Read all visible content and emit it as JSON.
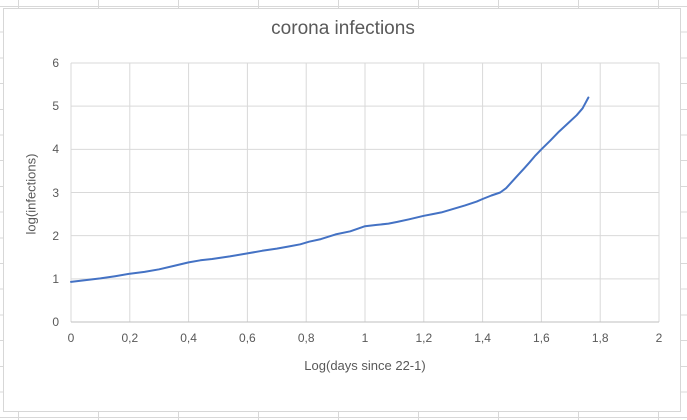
{
  "chart_data": {
    "type": "line",
    "title": "corona infections",
    "xlabel": "Log(days since 22-1)",
    "ylabel": "log(infections)",
    "xlim": [
      0,
      2
    ],
    "ylim": [
      0,
      6
    ],
    "grid": true,
    "legend": "none",
    "x_ticks": [
      {
        "label": "0",
        "value": 0.0
      },
      {
        "label": "0,2",
        "value": 0.2
      },
      {
        "label": "0,4",
        "value": 0.4
      },
      {
        "label": "0,6",
        "value": 0.6
      },
      {
        "label": "0,8",
        "value": 0.8
      },
      {
        "label": "1",
        "value": 1.0
      },
      {
        "label": "1,2",
        "value": 1.2
      },
      {
        "label": "1,4",
        "value": 1.4
      },
      {
        "label": "1,6",
        "value": 1.6
      },
      {
        "label": "1,8",
        "value": 1.8
      },
      {
        "label": "2",
        "value": 2.0
      }
    ],
    "y_ticks": [
      {
        "label": "0",
        "value": 0
      },
      {
        "label": "1",
        "value": 1
      },
      {
        "label": "2",
        "value": 2
      },
      {
        "label": "3",
        "value": 3
      },
      {
        "label": "4",
        "value": 4
      },
      {
        "label": "5",
        "value": 5
      },
      {
        "label": "6",
        "value": 6
      }
    ],
    "series": [
      {
        "name": "log(infections)",
        "color": "#4472C4",
        "points": [
          [
            0.0,
            0.93
          ],
          [
            0.05,
            0.97
          ],
          [
            0.1,
            1.01
          ],
          [
            0.15,
            1.06
          ],
          [
            0.2,
            1.12
          ],
          [
            0.25,
            1.16
          ],
          [
            0.3,
            1.22
          ],
          [
            0.35,
            1.3
          ],
          [
            0.4,
            1.38
          ],
          [
            0.44,
            1.43
          ],
          [
            0.48,
            1.46
          ],
          [
            0.54,
            1.52
          ],
          [
            0.6,
            1.59
          ],
          [
            0.65,
            1.65
          ],
          [
            0.7,
            1.7
          ],
          [
            0.74,
            1.75
          ],
          [
            0.78,
            1.8
          ],
          [
            0.81,
            1.86
          ],
          [
            0.85,
            1.92
          ],
          [
            0.9,
            2.03
          ],
          [
            0.95,
            2.1
          ],
          [
            1.0,
            2.22
          ],
          [
            1.04,
            2.25
          ],
          [
            1.08,
            2.28
          ],
          [
            1.11,
            2.32
          ],
          [
            1.15,
            2.38
          ],
          [
            1.2,
            2.46
          ],
          [
            1.23,
            2.5
          ],
          [
            1.26,
            2.54
          ],
          [
            1.3,
            2.62
          ],
          [
            1.34,
            2.7
          ],
          [
            1.38,
            2.79
          ],
          [
            1.4,
            2.85
          ],
          [
            1.43,
            2.93
          ],
          [
            1.46,
            3.0
          ],
          [
            1.48,
            3.1
          ],
          [
            1.5,
            3.25
          ],
          [
            1.52,
            3.4
          ],
          [
            1.54,
            3.55
          ],
          [
            1.56,
            3.7
          ],
          [
            1.58,
            3.86
          ],
          [
            1.6,
            4.0
          ],
          [
            1.63,
            4.2
          ],
          [
            1.66,
            4.41
          ],
          [
            1.69,
            4.6
          ],
          [
            1.72,
            4.79
          ],
          [
            1.74,
            4.95
          ],
          [
            1.76,
            5.2
          ]
        ]
      }
    ],
    "colors": {
      "line": "#4472C4",
      "gridline": "#d9d9d9",
      "axis_line": "#bfbfbf",
      "text": "#595959",
      "chart_border": "#d7d7d7",
      "sheet_gridline": "#d8d8d8"
    }
  }
}
